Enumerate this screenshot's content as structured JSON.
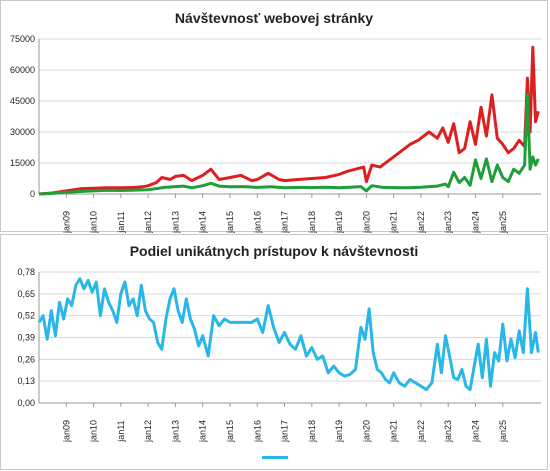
{
  "colors": {
    "total": "#dd1f1f",
    "unique": "#1f9e3a",
    "ratio": "#29b6e8",
    "grid": "#d9d9d9",
    "axis": "#9a9a9a"
  },
  "chart_data": [
    {
      "type": "line",
      "title": "Návštevnosť webovej stránky",
      "ylim": [
        0,
        75000
      ],
      "yticks": [
        "0",
        "15000",
        "30000",
        "45000",
        "60000",
        "75000"
      ],
      "ytick_values": [
        0,
        15000,
        30000,
        45000,
        60000,
        75000
      ],
      "xlim": [
        2008.0,
        2026.4
      ],
      "xticks": [
        "jan09",
        "jan10",
        "jan11",
        "jan12",
        "jan13",
        "jan14",
        "jan15",
        "jan16",
        "jan17",
        "jan18",
        "jan19",
        "jan20",
        "jan21",
        "jan22",
        "jan23",
        "jan24",
        "jan25"
      ],
      "xtick_values": [
        2009,
        2010,
        2011,
        2012,
        2013,
        2014,
        2015,
        2016,
        2017,
        2018,
        2019,
        2020,
        2021,
        2022,
        2023,
        2024,
        2025
      ],
      "grid": true,
      "series": [
        {
          "color_key": "total",
          "x": [
            2008.0,
            2008.5,
            2009.0,
            2009.5,
            2010.0,
            2010.5,
            2011.0,
            2011.5,
            2011.8,
            2012.0,
            2012.3,
            2012.5,
            2012.8,
            2013.0,
            2013.3,
            2013.6,
            2014.0,
            2014.3,
            2014.6,
            2015.0,
            2015.4,
            2015.8,
            2016.0,
            2016.4,
            2016.8,
            2017.0,
            2017.5,
            2018.0,
            2018.5,
            2019.0,
            2019.3,
            2019.6,
            2019.9,
            2020.0,
            2020.2,
            2020.5,
            2020.8,
            2021.0,
            2021.3,
            2021.6,
            2021.9,
            2022.1,
            2022.3,
            2022.6,
            2022.8,
            2023.0,
            2023.2,
            2023.4,
            2023.6,
            2023.8,
            2024.0,
            2024.2,
            2024.4,
            2024.6,
            2024.8,
            2025.0,
            2025.2,
            2025.4,
            2025.6,
            2025.8,
            2025.9,
            2026.0,
            2026.1,
            2026.2,
            2026.3
          ],
          "y": [
            0,
            500,
            1500,
            2500,
            2800,
            3000,
            3000,
            3200,
            3500,
            4000,
            5500,
            8000,
            7000,
            8500,
            9000,
            6500,
            9000,
            12000,
            7000,
            8000,
            9000,
            6500,
            7000,
            10000,
            7000,
            6500,
            7000,
            7500,
            8000,
            9500,
            11000,
            12000,
            13000,
            6000,
            14000,
            13000,
            16000,
            18000,
            21000,
            24000,
            26000,
            28000,
            30000,
            27000,
            32000,
            25000,
            34000,
            20000,
            22000,
            35000,
            24000,
            42000,
            28000,
            48000,
            27000,
            24000,
            20000,
            22000,
            26000,
            23000,
            56000,
            30000,
            71000,
            35000,
            40000
          ]
        },
        {
          "color_key": "unique",
          "x": [
            2008.0,
            2008.5,
            2009.0,
            2009.5,
            2010.0,
            2010.5,
            2011.0,
            2011.5,
            2012.0,
            2012.3,
            2012.6,
            2013.0,
            2013.3,
            2013.6,
            2014.0,
            2014.3,
            2014.6,
            2015.0,
            2015.5,
            2016.0,
            2016.5,
            2017.0,
            2017.5,
            2018.0,
            2018.5,
            2019.0,
            2019.4,
            2019.8,
            2020.0,
            2020.2,
            2020.6,
            2021.0,
            2021.5,
            2022.0,
            2022.3,
            2022.6,
            2022.9,
            2023.0,
            2023.2,
            2023.4,
            2023.6,
            2023.8,
            2024.0,
            2024.2,
            2024.4,
            2024.6,
            2024.8,
            2025.0,
            2025.2,
            2025.4,
            2025.6,
            2025.8,
            2025.9,
            2026.0,
            2026.1,
            2026.2,
            2026.3
          ],
          "y": [
            0,
            300,
            800,
            1200,
            1500,
            1800,
            1700,
            1900,
            2100,
            2600,
            3200,
            3600,
            3800,
            3000,
            4000,
            5200,
            3800,
            3500,
            3600,
            3200,
            3500,
            3000,
            3200,
            3100,
            3300,
            3000,
            3300,
            3600,
            1500,
            4000,
            3200,
            3100,
            3000,
            3300,
            3600,
            3800,
            4800,
            3500,
            10500,
            5500,
            8000,
            4200,
            16500,
            7500,
            17000,
            6000,
            14000,
            8000,
            6000,
            12000,
            10000,
            14000,
            48000,
            12000,
            18000,
            14000,
            17000
          ]
        }
      ]
    },
    {
      "type": "line",
      "title": "Podiel unikátnych prístupov k návštevnosti",
      "ylim": [
        0,
        0.78
      ],
      "yticks": [
        "0,00",
        "0,13",
        "0,26",
        "0,39",
        "0,52",
        "0,65",
        "0,78"
      ],
      "ytick_values": [
        0,
        0.13,
        0.26,
        0.39,
        0.52,
        0.65,
        0.78
      ],
      "xlim": [
        2008.0,
        2026.4
      ],
      "xticks": [
        "jan09",
        "jan10",
        "jan11",
        "jan12",
        "jan13",
        "jan14",
        "jan15",
        "jan16",
        "jan17",
        "jan18",
        "jan19",
        "jan20",
        "jan21",
        "jan22",
        "jan23",
        "jan24",
        "jan25"
      ],
      "xtick_values": [
        2009,
        2010,
        2011,
        2012,
        2013,
        2014,
        2015,
        2016,
        2017,
        2018,
        2019,
        2020,
        2021,
        2022,
        2023,
        2024,
        2025
      ],
      "grid": true,
      "legend": "bottom-center",
      "series": [
        {
          "color_key": "ratio",
          "x": [
            2008.0,
            2008.15,
            2008.3,
            2008.45,
            2008.6,
            2008.75,
            2008.9,
            2009.05,
            2009.2,
            2009.35,
            2009.5,
            2009.65,
            2009.8,
            2009.95,
            2010.1,
            2010.25,
            2010.4,
            2010.55,
            2010.7,
            2010.85,
            2011.0,
            2011.15,
            2011.3,
            2011.45,
            2011.6,
            2011.75,
            2011.9,
            2012.05,
            2012.2,
            2012.35,
            2012.5,
            2012.65,
            2012.8,
            2012.95,
            2013.1,
            2013.25,
            2013.4,
            2013.55,
            2013.7,
            2013.85,
            2014.0,
            2014.2,
            2014.4,
            2014.6,
            2014.8,
            2015.0,
            2015.2,
            2015.4,
            2015.6,
            2015.8,
            2016.0,
            2016.2,
            2016.4,
            2016.6,
            2016.8,
            2017.0,
            2017.2,
            2017.4,
            2017.6,
            2017.8,
            2018.0,
            2018.2,
            2018.4,
            2018.6,
            2018.8,
            2019.0,
            2019.2,
            2019.4,
            2019.6,
            2019.8,
            2019.95,
            2020.1,
            2020.25,
            2020.4,
            2020.55,
            2020.7,
            2020.85,
            2021.0,
            2021.2,
            2021.4,
            2021.6,
            2021.8,
            2022.0,
            2022.2,
            2022.4,
            2022.6,
            2022.75,
            2022.9,
            2023.05,
            2023.2,
            2023.35,
            2023.5,
            2023.65,
            2023.8,
            2023.95,
            2024.1,
            2024.25,
            2024.4,
            2024.55,
            2024.7,
            2024.85,
            2025.0,
            2025.15,
            2025.3,
            2025.45,
            2025.6,
            2025.75,
            2025.9,
            2026.05,
            2026.2,
            2026.3
          ],
          "y": [
            0.48,
            0.52,
            0.38,
            0.55,
            0.4,
            0.6,
            0.5,
            0.62,
            0.58,
            0.7,
            0.74,
            0.68,
            0.73,
            0.66,
            0.72,
            0.52,
            0.68,
            0.6,
            0.55,
            0.48,
            0.65,
            0.72,
            0.58,
            0.62,
            0.52,
            0.7,
            0.55,
            0.5,
            0.48,
            0.36,
            0.32,
            0.5,
            0.62,
            0.68,
            0.55,
            0.48,
            0.62,
            0.5,
            0.44,
            0.34,
            0.4,
            0.28,
            0.52,
            0.46,
            0.5,
            0.48,
            0.48,
            0.48,
            0.48,
            0.48,
            0.5,
            0.42,
            0.58,
            0.45,
            0.36,
            0.42,
            0.35,
            0.32,
            0.4,
            0.28,
            0.33,
            0.26,
            0.28,
            0.18,
            0.22,
            0.18,
            0.16,
            0.17,
            0.2,
            0.45,
            0.38,
            0.56,
            0.3,
            0.2,
            0.18,
            0.14,
            0.12,
            0.18,
            0.12,
            0.1,
            0.14,
            0.12,
            0.1,
            0.08,
            0.12,
            0.35,
            0.18,
            0.4,
            0.28,
            0.15,
            0.14,
            0.2,
            0.1,
            0.08,
            0.22,
            0.35,
            0.15,
            0.38,
            0.1,
            0.3,
            0.25,
            0.47,
            0.25,
            0.38,
            0.27,
            0.43,
            0.3,
            0.68,
            0.3,
            0.42,
            0.3
          ]
        }
      ]
    }
  ]
}
